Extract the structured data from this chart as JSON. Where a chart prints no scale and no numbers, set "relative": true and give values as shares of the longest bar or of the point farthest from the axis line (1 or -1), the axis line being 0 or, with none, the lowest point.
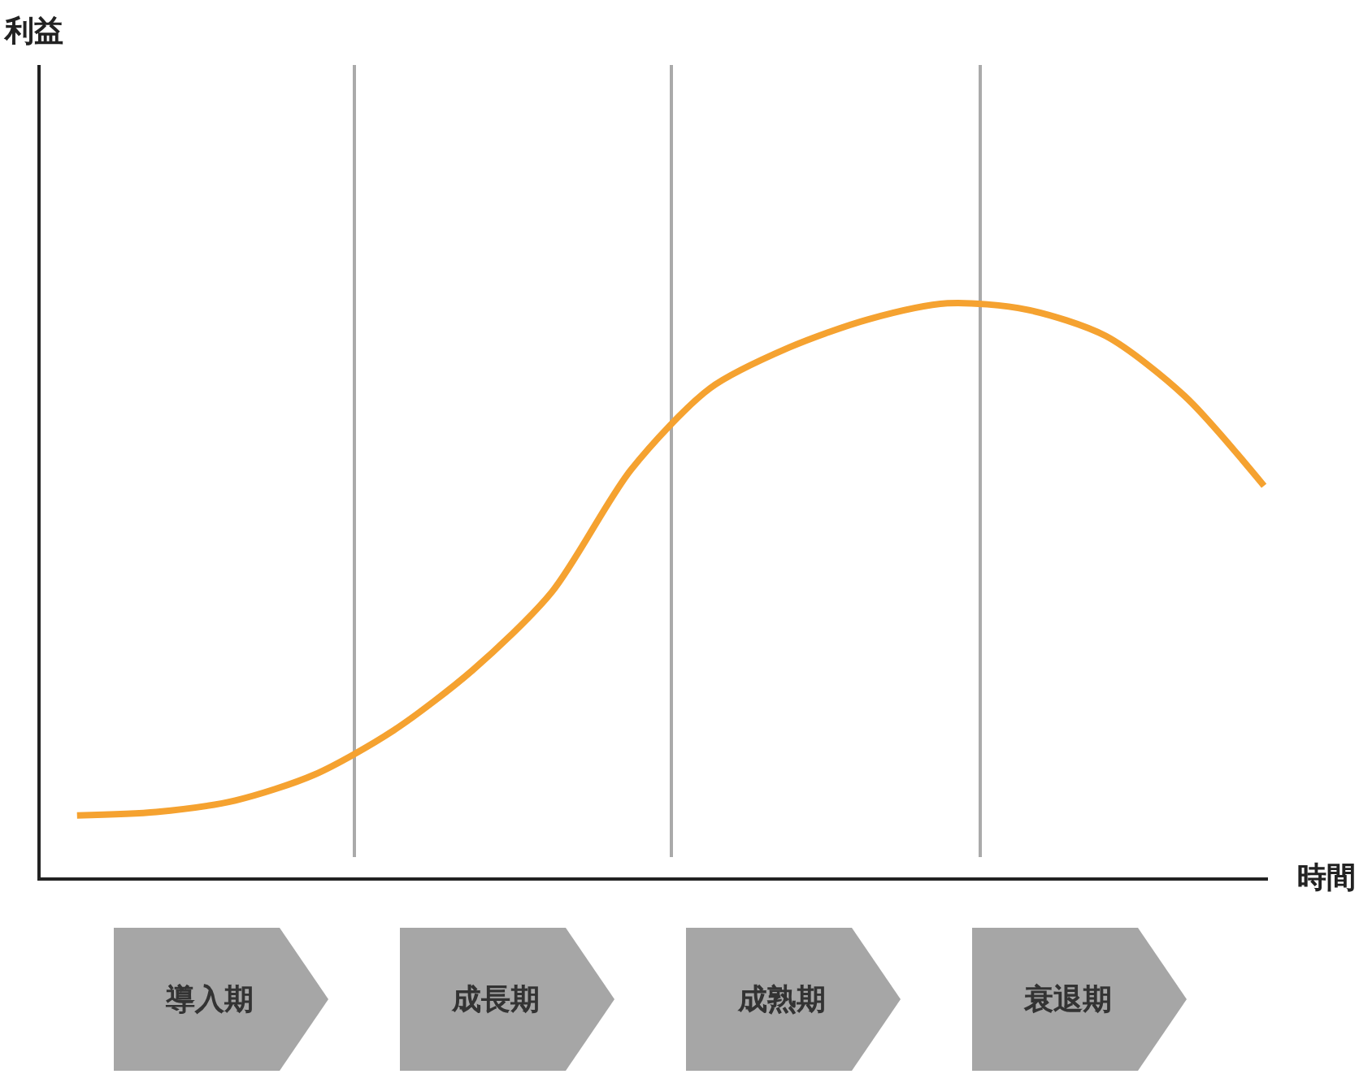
{
  "chart_data": {
    "type": "line",
    "relative": true,
    "xlabel": "時間",
    "categories": [
      null,
      null,
      null,
      null,
      null,
      null,
      null,
      null,
      null,
      null,
      null,
      null,
      null,
      null,
      null,
      null
    ],
    "series": [
      {
        "color": "#f5a230",
        "values": [
          0.108,
          0.114,
          0.134,
          0.179,
          0.256,
          0.361,
          0.497,
          0.71,
          0.852,
          0.923,
          0.972,
          1.0,
          0.989,
          0.943,
          0.838,
          0.682
        ]
      }
    ],
    "annotations": [
      "利益",
      "導入期",
      "成長期",
      "成熟期",
      "衰退期"
    ],
    "grid": false,
    "marker": "none",
    "line_style": "solid"
  }
}
